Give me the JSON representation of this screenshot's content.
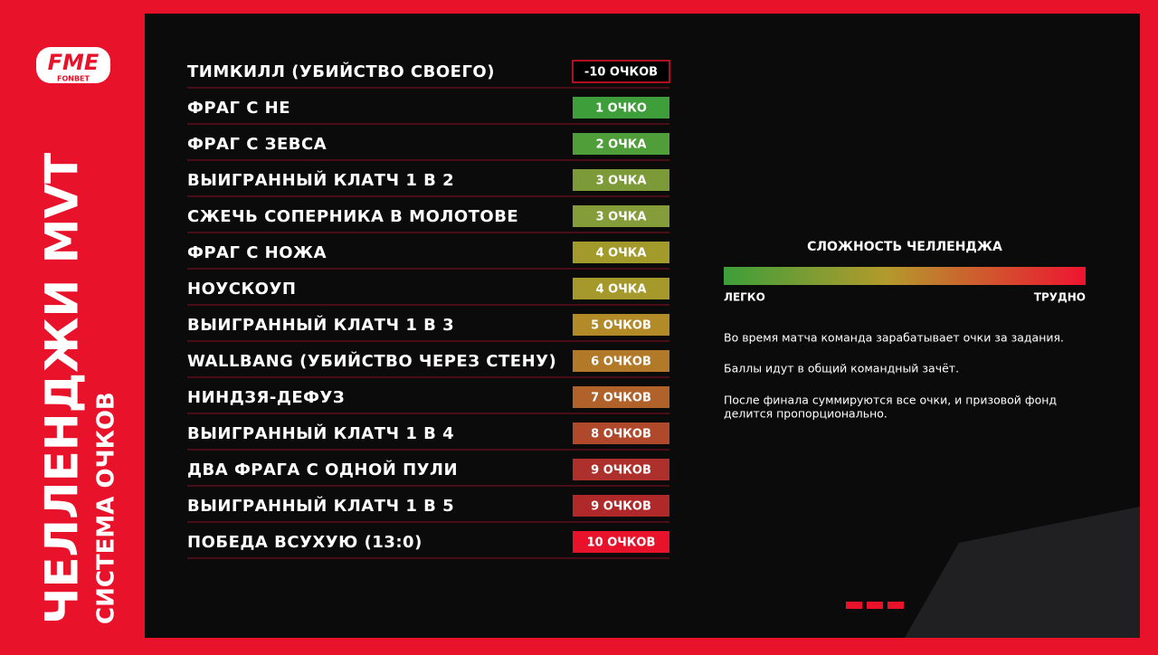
{
  "logo": {
    "name": "FME",
    "sponsor": "FONBET"
  },
  "title": "ЧЕЛЛЕНДЖИ MVT",
  "subtitle": "СИСТЕМА ОЧКОВ",
  "rows": [
    {
      "name": "ТИМКИЛЛ (УБИЙСТВО СВОЕГО)",
      "points": "-10 ОЧКОВ",
      "color": "#000000"
    },
    {
      "name": "ФРАГ С НЕ",
      "points": "1 ОЧКО",
      "color": "#3e9e3a"
    },
    {
      "name": "ФРАГ С ЗЕВСА",
      "points": "2 ОЧКА",
      "color": "#4f9e3a"
    },
    {
      "name": "ВЫИГРАННЫЙ КЛАТЧ 1 В 2",
      "points": "3 ОЧКА",
      "color": "#7c9a38"
    },
    {
      "name": "СЖЕЧЬ СОПЕРНИКА В МОЛОТОВЕ",
      "points": "3 ОЧКА",
      "color": "#849c3a"
    },
    {
      "name": "ФРАГ С НОЖА",
      "points": "4 ОЧКА",
      "color": "#a39a2c"
    },
    {
      "name": "НОУСКОУП",
      "points": "4 ОЧКА",
      "color": "#a6992c"
    },
    {
      "name": "ВЫИГРАННЫЙ КЛАТЧ 1 В 3",
      "points": "5 ОЧКОВ",
      "color": "#b28a28"
    },
    {
      "name": "WALLBANG (УБИЙСТВО ЧЕРЕЗ СТЕНУ)",
      "points": "6 ОЧКОВ",
      "color": "#b27a28"
    },
    {
      "name": "НИНДЗЯ-ДЕФУЗ",
      "points": "7 ОЧКОВ",
      "color": "#b0622a"
    },
    {
      "name": "ВЫИГРАННЫЙ КЛАТЧ 1 В 4",
      "points": "8 ОЧКОВ",
      "color": "#b0482c"
    },
    {
      "name": "ДВА ФРАГА С ОДНОЙ ПУЛИ",
      "points": "9 ОЧКОВ",
      "color": "#ae302c"
    },
    {
      "name": "ВЫИГРАННЫЙ КЛАТЧ 1 В 5",
      "points": "9 ОЧКОВ",
      "color": "#b0292a"
    },
    {
      "name": "ПОБЕДА ВСУХУЮ (13:0)",
      "points": "10 ОЧКОВ",
      "color": "#e8132a"
    }
  ],
  "legend": {
    "title": "СЛОЖНОСТЬ ЧЕЛЛЕНДЖА",
    "easy": "ЛЕГКО",
    "hard": "ТРУДНО"
  },
  "notes": [
    "Во время матча команда зарабатывает очки за задания.",
    "Баллы идут в общий командный зачёт.",
    "После финала суммируются все очки, и призовой фонд",
    "делится пропорционально."
  ]
}
